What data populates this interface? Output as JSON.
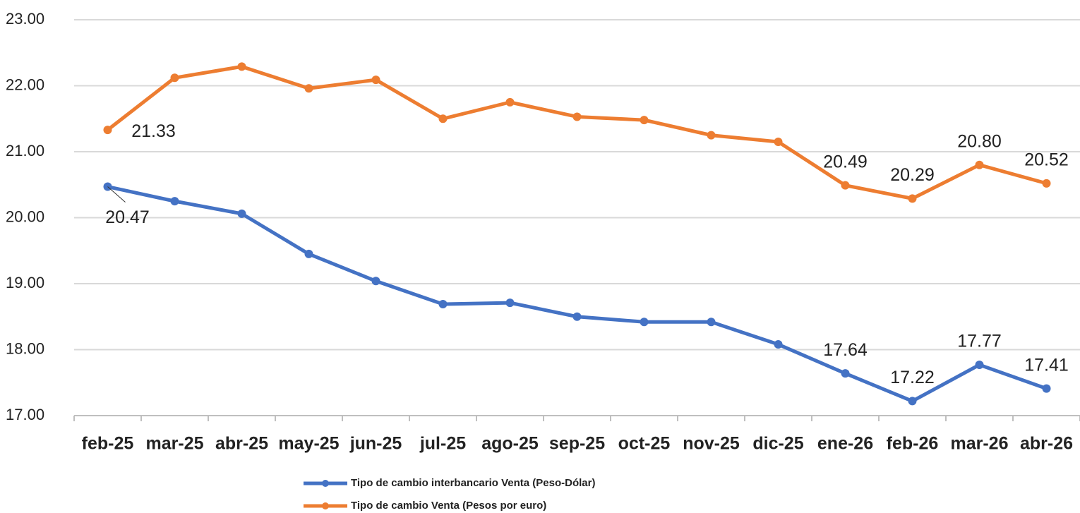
{
  "chart_data": {
    "type": "line",
    "categories": [
      "feb-25",
      "mar-25",
      "abr-25",
      "may-25",
      "jun-25",
      "jul-25",
      "ago-25",
      "sep-25",
      "oct-25",
      "nov-25",
      "dic-25",
      "ene-26",
      "feb-26",
      "mar-26",
      "abr-26"
    ],
    "series": [
      {
        "name": "Tipo de cambio interbancario Venta (Peso-Dólar)",
        "color": "#4472c4",
        "values": [
          20.47,
          20.25,
          20.06,
          19.45,
          19.04,
          18.69,
          18.71,
          18.5,
          18.42,
          18.42,
          18.08,
          17.64,
          17.22,
          17.77,
          17.41
        ],
        "value_labels": [
          "20.47",
          null,
          null,
          null,
          null,
          null,
          null,
          null,
          null,
          null,
          null,
          "17.64",
          "17.22",
          "17.77",
          "17.41"
        ]
      },
      {
        "name": "Tipo de cambio Venta (Pesos por euro)",
        "color": "#ed7d31",
        "values": [
          21.33,
          22.12,
          22.29,
          21.96,
          22.09,
          21.5,
          21.75,
          21.53,
          21.48,
          21.25,
          21.15,
          20.49,
          20.29,
          20.8,
          20.52
        ],
        "value_labels": [
          "21.33",
          null,
          null,
          null,
          null,
          null,
          null,
          null,
          null,
          null,
          null,
          "20.49",
          "20.29",
          "20.80",
          "20.52"
        ]
      }
    ],
    "ylim": [
      17,
      23
    ],
    "yticks": [
      {
        "value": 17,
        "label": "17.00"
      },
      {
        "value": 18,
        "label": "18.00"
      },
      {
        "value": 19,
        "label": "19.00"
      },
      {
        "value": 20,
        "label": "20.00"
      },
      {
        "value": 21,
        "label": "21.00"
      },
      {
        "value": 22,
        "label": "22.00"
      },
      {
        "value": 23,
        "label": "23.00"
      }
    ],
    "grid": true
  }
}
